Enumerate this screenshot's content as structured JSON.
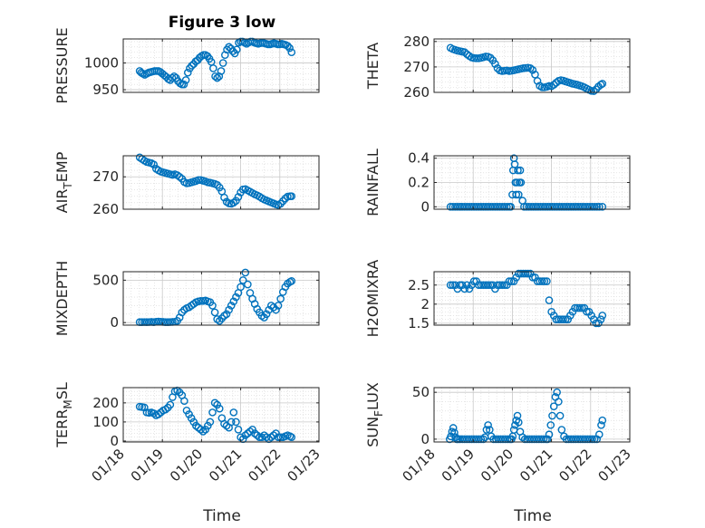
{
  "figure": {
    "title": "Figure 3 low",
    "x_axis_label": "Time",
    "x_tick_labels": [
      "01/18",
      "01/19",
      "01/20",
      "01/21",
      "01/22",
      "01/23"
    ]
  },
  "style": {
    "marker_color": "#0072BD",
    "axes_color": "#262626",
    "grid_color": "#c8c8c8"
  },
  "chart_data": [
    {
      "type": "scatter",
      "ylabel": "PRESSURE",
      "ylim": [
        945,
        1045
      ],
      "yticks": [
        950,
        1000
      ],
      "xlim": [
        18,
        23
      ],
      "grid": true,
      "x": [
        18.42,
        18.46,
        18.5,
        18.55,
        18.6,
        18.65,
        18.7,
        18.75,
        18.8,
        18.85,
        18.9,
        18.95,
        19.0,
        19.05,
        19.1,
        19.15,
        19.2,
        19.25,
        19.3,
        19.35,
        19.4,
        19.45,
        19.5,
        19.55,
        19.6,
        19.65,
        19.7,
        19.75,
        19.8,
        19.85,
        19.9,
        19.95,
        20.0,
        20.05,
        20.1,
        20.15,
        20.2,
        20.25,
        20.3,
        20.35,
        20.4,
        20.45,
        20.5,
        20.55,
        20.6,
        20.65,
        20.7,
        20.75,
        20.8,
        20.85,
        20.9,
        20.95,
        21.0,
        21.05,
        21.1,
        21.15,
        21.2,
        21.25,
        21.3,
        21.35,
        21.4,
        21.45,
        21.5,
        21.55,
        21.6,
        21.65,
        21.7,
        21.75,
        21.8,
        21.85,
        21.9,
        21.95,
        22.0,
        22.05,
        22.1,
        22.15,
        22.2,
        22.25,
        22.3
      ],
      "y": [
        985,
        982,
        980,
        978,
        980,
        982,
        983,
        984,
        985,
        985,
        985,
        983,
        980,
        977,
        974,
        970,
        968,
        972,
        975,
        972,
        966,
        962,
        960,
        960,
        968,
        982,
        990,
        995,
        998,
        1003,
        1005,
        1010,
        1013,
        1015,
        1015,
        1013,
        1008,
        1002,
        990,
        975,
        972,
        975,
        985,
        1000,
        1015,
        1025,
        1030,
        1027,
        1022,
        1018,
        1025,
        1038,
        1040,
        1040,
        1038,
        1036,
        1038,
        1040,
        1040,
        1038,
        1037,
        1036,
        1037,
        1038,
        1037,
        1036,
        1035,
        1035,
        1036,
        1037,
        1036,
        1035,
        1035,
        1036,
        1035,
        1034,
        1032,
        1028,
        1020
      ]
    },
    {
      "type": "scatter",
      "ylabel": "THETA",
      "ylim": [
        260,
        281
      ],
      "yticks": [
        260,
        270,
        280
      ],
      "xlim": [
        18,
        23
      ],
      "grid": true,
      "x": [
        18.42,
        18.48,
        18.54,
        18.6,
        18.66,
        18.72,
        18.78,
        18.84,
        18.9,
        18.96,
        19.02,
        19.08,
        19.14,
        19.2,
        19.26,
        19.32,
        19.38,
        19.44,
        19.5,
        19.56,
        19.62,
        19.68,
        19.74,
        19.8,
        19.86,
        19.92,
        19.98,
        20.04,
        20.1,
        20.16,
        20.22,
        20.28,
        20.34,
        20.4,
        20.46,
        20.52,
        20.58,
        20.64,
        20.7,
        20.76,
        20.82,
        20.88,
        20.94,
        21.0,
        21.06,
        21.12,
        21.18,
        21.24,
        21.3,
        21.36,
        21.42,
        21.48,
        21.54,
        21.6,
        21.66,
        21.72,
        21.78,
        21.84,
        21.9,
        21.96,
        22.02,
        22.08,
        22.14,
        22.2,
        22.26,
        22.3
      ],
      "y": [
        277.5,
        277,
        276.7,
        276.4,
        276.2,
        276,
        275.8,
        275,
        274.3,
        273.7,
        273.5,
        273.4,
        273.4,
        273.6,
        273.8,
        274.1,
        274,
        273.6,
        272.6,
        271.2,
        269.5,
        268.6,
        268.4,
        268.5,
        268.6,
        268.4,
        268.5,
        268.7,
        268.9,
        269.1,
        269.3,
        269.5,
        269.6,
        269.7,
        269.5,
        268.8,
        267,
        264.5,
        262.6,
        262,
        262,
        262.2,
        262.5,
        262.4,
        263,
        263.8,
        264.5,
        264.8,
        264.6,
        264.3,
        264,
        263.7,
        263.4,
        263.2,
        263,
        262.7,
        262.4,
        262,
        261.5,
        261,
        260.6,
        260.5,
        261.2,
        262.3,
        263,
        263.4
      ]
    },
    {
      "type": "scatter",
      "ylabel": "AIR_TEMP",
      "ylim": [
        260,
        276.5
      ],
      "yticks": [
        260,
        270
      ],
      "xlim": [
        18,
        23
      ],
      "grid": true,
      "x": [
        18.42,
        18.48,
        18.54,
        18.6,
        18.66,
        18.72,
        18.78,
        18.84,
        18.9,
        18.96,
        19.02,
        19.08,
        19.14,
        19.2,
        19.26,
        19.32,
        19.38,
        19.44,
        19.5,
        19.56,
        19.62,
        19.68,
        19.74,
        19.8,
        19.86,
        19.92,
        19.98,
        20.04,
        20.1,
        20.16,
        20.22,
        20.28,
        20.34,
        20.4,
        20.46,
        20.52,
        20.58,
        20.64,
        20.7,
        20.76,
        20.82,
        20.88,
        20.94,
        21.0,
        21.06,
        21.12,
        21.18,
        21.24,
        21.3,
        21.36,
        21.42,
        21.48,
        21.54,
        21.6,
        21.66,
        21.72,
        21.78,
        21.84,
        21.9,
        21.96,
        22.02,
        22.08,
        22.14,
        22.2,
        22.26,
        22.3
      ],
      "y": [
        276,
        275.5,
        275,
        274.6,
        274.4,
        274.2,
        273.8,
        272.5,
        272,
        271.6,
        271.4,
        271.2,
        271,
        270.8,
        270.6,
        270.8,
        270.5,
        270,
        269.4,
        268.4,
        268,
        268.1,
        268.3,
        268.5,
        268.7,
        269,
        269,
        268.8,
        268.6,
        268.3,
        268.2,
        268,
        267.8,
        267.5,
        266.7,
        265.5,
        263.6,
        262.3,
        261.8,
        261.7,
        262,
        262.6,
        263.8,
        265.2,
        266.1,
        266.2,
        265.8,
        265.4,
        265,
        264.6,
        264.3,
        263.9,
        263.4,
        263,
        262.7,
        262.4,
        262.1,
        261.8,
        261.5,
        261.3,
        261.7,
        262.5,
        263.3,
        263.9,
        264,
        264
      ]
    },
    {
      "type": "scatter",
      "ylabel": "RAINFALL",
      "ylim": [
        -0.02,
        0.42
      ],
      "yticks": [
        0,
        0.2,
        0.4
      ],
      "xlim": [
        18,
        23
      ],
      "grid": true,
      "x": [
        18.42,
        18.48,
        18.54,
        18.6,
        18.66,
        18.72,
        18.78,
        18.84,
        18.9,
        18.96,
        19.02,
        19.08,
        19.14,
        19.2,
        19.26,
        19.32,
        19.38,
        19.44,
        19.5,
        19.56,
        19.62,
        19.68,
        19.74,
        19.8,
        19.86,
        19.92,
        19.96,
        20.0,
        20.02,
        20.04,
        20.06,
        20.08,
        20.1,
        20.12,
        20.14,
        20.16,
        20.18,
        20.2,
        20.22,
        20.26,
        20.3,
        20.36,
        20.42,
        20.48,
        20.54,
        20.6,
        20.66,
        20.72,
        20.78,
        20.84,
        20.9,
        20.96,
        21.02,
        21.08,
        21.14,
        21.2,
        21.26,
        21.32,
        21.38,
        21.44,
        21.5,
        21.56,
        21.62,
        21.68,
        21.74,
        21.8,
        21.86,
        21.92,
        21.98,
        22.04,
        22.1,
        22.16,
        22.22,
        22.3
      ],
      "y": [
        0,
        0,
        0,
        0,
        0,
        0,
        0,
        0,
        0,
        0,
        0,
        0,
        0,
        0,
        0,
        0,
        0,
        0,
        0,
        0,
        0,
        0,
        0,
        0,
        0,
        0,
        0,
        0.1,
        0.3,
        0.4,
        0.35,
        0.2,
        0.1,
        0.2,
        0.3,
        0.1,
        0.2,
        0.3,
        0.2,
        0.05,
        0,
        0,
        0,
        0,
        0,
        0,
        0,
        0,
        0,
        0,
        0,
        0,
        0,
        0,
        0,
        0,
        0,
        0,
        0,
        0,
        0,
        0,
        0,
        0,
        0,
        0,
        0,
        0,
        0,
        0,
        0,
        0,
        0,
        0
      ]
    },
    {
      "type": "scatter",
      "ylabel": "MIXDEPTH",
      "ylim": [
        -30,
        600
      ],
      "yticks": [
        0,
        500
      ],
      "xlim": [
        18,
        23
      ],
      "grid": true,
      "x": [
        18.42,
        18.48,
        18.54,
        18.6,
        18.66,
        18.72,
        18.78,
        18.84,
        18.9,
        18.96,
        19.02,
        19.08,
        19.14,
        19.2,
        19.26,
        19.32,
        19.38,
        19.44,
        19.5,
        19.56,
        19.62,
        19.68,
        19.74,
        19.8,
        19.86,
        19.92,
        19.98,
        20.04,
        20.1,
        20.16,
        20.22,
        20.28,
        20.34,
        20.4,
        20.46,
        20.52,
        20.58,
        20.64,
        20.7,
        20.76,
        20.82,
        20.88,
        20.94,
        21.0,
        21.06,
        21.12,
        21.18,
        21.24,
        21.3,
        21.36,
        21.42,
        21.48,
        21.54,
        21.6,
        21.66,
        21.72,
        21.78,
        21.84,
        21.9,
        21.96,
        22.02,
        22.08,
        22.14,
        22.2,
        22.26,
        22.3
      ],
      "y": [
        5,
        5,
        6,
        5,
        6,
        8,
        5,
        10,
        12,
        10,
        8,
        5,
        5,
        6,
        8,
        10,
        20,
        60,
        120,
        150,
        170,
        180,
        200,
        220,
        240,
        250,
        255,
        255,
        260,
        250,
        240,
        200,
        120,
        40,
        20,
        50,
        80,
        100,
        150,
        200,
        250,
        300,
        350,
        420,
        500,
        590,
        450,
        350,
        280,
        220,
        160,
        120,
        80,
        60,
        100,
        150,
        200,
        180,
        150,
        200,
        280,
        360,
        420,
        460,
        480,
        490
      ]
    },
    {
      "type": "scatter",
      "ylabel": "H2OMIXRA",
      "ylim": [
        1.45,
        2.85
      ],
      "yticks": [
        1.5,
        2,
        2.5
      ],
      "xlim": [
        18,
        23
      ],
      "grid": true,
      "x": [
        18.42,
        18.48,
        18.54,
        18.6,
        18.66,
        18.72,
        18.78,
        18.84,
        18.9,
        18.96,
        19.02,
        19.08,
        19.14,
        19.2,
        19.26,
        19.32,
        19.38,
        19.44,
        19.5,
        19.56,
        19.62,
        19.68,
        19.74,
        19.8,
        19.86,
        19.92,
        19.98,
        20.04,
        20.1,
        20.16,
        20.22,
        20.28,
        20.34,
        20.4,
        20.46,
        20.52,
        20.58,
        20.64,
        20.7,
        20.76,
        20.82,
        20.88,
        20.94,
        21.0,
        21.06,
        21.12,
        21.18,
        21.24,
        21.3,
        21.36,
        21.42,
        21.48,
        21.54,
        21.6,
        21.66,
        21.72,
        21.78,
        21.84,
        21.9,
        21.96,
        22.02,
        22.08,
        22.14,
        22.2,
        22.26,
        22.3
      ],
      "y": [
        2.5,
        2.5,
        2.5,
        2.4,
        2.5,
        2.5,
        2.4,
        2.5,
        2.4,
        2.5,
        2.6,
        2.6,
        2.5,
        2.5,
        2.5,
        2.5,
        2.5,
        2.5,
        2.5,
        2.4,
        2.5,
        2.5,
        2.5,
        2.5,
        2.5,
        2.6,
        2.6,
        2.6,
        2.7,
        2.8,
        2.8,
        2.8,
        2.8,
        2.8,
        2.8,
        2.7,
        2.7,
        2.6,
        2.6,
        2.6,
        2.6,
        2.6,
        2.1,
        1.8,
        1.7,
        1.6,
        1.6,
        1.6,
        1.6,
        1.6,
        1.6,
        1.7,
        1.8,
        1.9,
        1.9,
        1.9,
        1.9,
        1.9,
        1.8,
        1.8,
        1.7,
        1.6,
        1.5,
        1.5,
        1.6,
        1.7
      ]
    },
    {
      "type": "scatter",
      "ylabel": "TERR_MSL",
      "ylim": [
        -5,
        280
      ],
      "yticks": [
        0,
        100,
        200
      ],
      "xlim": [
        18,
        23
      ],
      "grid": true,
      "x": [
        18.42,
        18.48,
        18.54,
        18.6,
        18.66,
        18.72,
        18.78,
        18.84,
        18.9,
        18.96,
        19.02,
        19.08,
        19.14,
        19.2,
        19.26,
        19.32,
        19.38,
        19.44,
        19.5,
        19.56,
        19.62,
        19.68,
        19.74,
        19.8,
        19.86,
        19.92,
        19.98,
        20.04,
        20.1,
        20.16,
        20.22,
        20.28,
        20.34,
        20.4,
        20.46,
        20.52,
        20.58,
        20.64,
        20.7,
        20.76,
        20.82,
        20.88,
        20.94,
        21.0,
        21.06,
        21.12,
        21.18,
        21.24,
        21.3,
        21.36,
        21.42,
        21.48,
        21.54,
        21.6,
        21.66,
        21.72,
        21.78,
        21.84,
        21.9,
        21.96,
        22.02,
        22.08,
        22.14,
        22.2,
        22.26,
        22.3
      ],
      "y": [
        180,
        178,
        176,
        150,
        148,
        150,
        145,
        135,
        140,
        150,
        160,
        165,
        175,
        190,
        230,
        260,
        265,
        255,
        240,
        210,
        160,
        140,
        120,
        100,
        80,
        70,
        60,
        50,
        60,
        80,
        100,
        150,
        200,
        190,
        170,
        120,
        90,
        80,
        70,
        100,
        150,
        100,
        60,
        20,
        10,
        30,
        40,
        50,
        60,
        40,
        30,
        20,
        20,
        30,
        20,
        10,
        20,
        30,
        40,
        20,
        20,
        20,
        25,
        30,
        25,
        20
      ]
    },
    {
      "type": "scatter",
      "ylabel": "SUN_FLUX",
      "ylim": [
        -3,
        55
      ],
      "yticks": [
        0,
        50
      ],
      "xlim": [
        18,
        23
      ],
      "grid": true,
      "x": [
        18.4,
        18.43,
        18.46,
        18.49,
        18.52,
        18.55,
        18.58,
        18.61,
        18.66,
        18.72,
        18.78,
        18.84,
        18.9,
        18.96,
        19.02,
        19.08,
        19.14,
        19.2,
        19.26,
        19.3,
        19.34,
        19.38,
        19.42,
        19.46,
        19.52,
        19.58,
        19.64,
        19.7,
        19.76,
        19.82,
        19.88,
        19.94,
        19.98,
        20.01,
        20.04,
        20.07,
        20.1,
        20.13,
        20.16,
        20.2,
        20.26,
        20.32,
        20.38,
        20.44,
        20.5,
        20.56,
        20.62,
        20.68,
        20.74,
        20.8,
        20.86,
        20.9,
        20.94,
        20.98,
        21.02,
        21.06,
        21.1,
        21.14,
        21.18,
        21.22,
        21.26,
        21.32,
        21.38,
        21.44,
        21.5,
        21.56,
        21.62,
        21.68,
        21.74,
        21.8,
        21.86,
        21.92,
        21.98,
        22.04,
        22.1,
        22.16,
        22.22,
        22.27,
        22.3
      ],
      "y": [
        0,
        3,
        8,
        12,
        7,
        2,
        0,
        0,
        0,
        0,
        0,
        0,
        0,
        0,
        0,
        0,
        0,
        0,
        0,
        2,
        10,
        15,
        10,
        3,
        0,
        0,
        0,
        0,
        0,
        0,
        0,
        0,
        0,
        3,
        10,
        15,
        20,
        25,
        18,
        8,
        2,
        0,
        0,
        0,
        0,
        0,
        0,
        0,
        0,
        0,
        0,
        0,
        5,
        15,
        25,
        35,
        45,
        50,
        40,
        25,
        10,
        3,
        0,
        0,
        0,
        0,
        0,
        0,
        0,
        0,
        0,
        0,
        0,
        0,
        0,
        0,
        5,
        15,
        20
      ]
    }
  ]
}
